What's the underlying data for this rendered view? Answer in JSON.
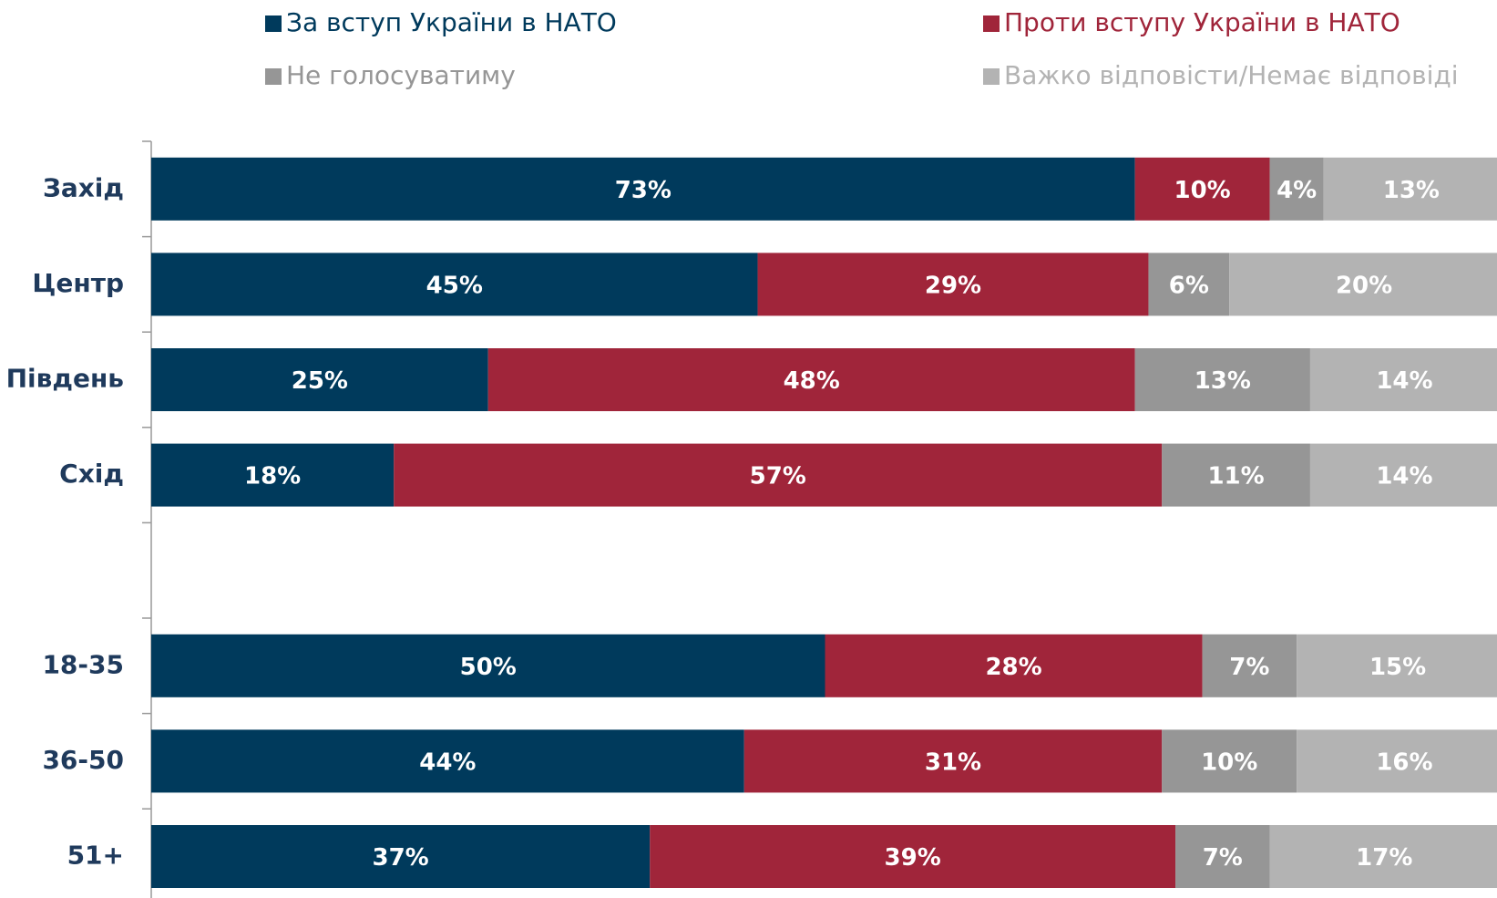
{
  "chart_data": {
    "type": "stacked-bar-horizontal",
    "categories": [
      "Захід",
      "Центр",
      "Південь",
      "Схід",
      null,
      "18-35",
      "36-50",
      "51+"
    ],
    "xlim": [
      0,
      100
    ],
    "series": [
      {
        "name": "За вступ України в НАТО",
        "color": "#003a5c",
        "values": [
          73,
          45,
          25,
          18,
          null,
          50,
          44,
          37
        ],
        "value_labels": [
          "73%",
          "45%",
          "25%",
          "18%",
          null,
          "50%",
          "44%",
          "37%"
        ]
      },
      {
        "name": "Проти вступу України в НАТО",
        "color": "#a0253a",
        "values": [
          10,
          29,
          48,
          57,
          null,
          28,
          31,
          39
        ],
        "value_labels": [
          "10%",
          "29%",
          "48%",
          "57%",
          null,
          "28%",
          "31%",
          "39%"
        ]
      },
      {
        "name": "Не голосуватиму",
        "color": "#969696",
        "values": [
          4,
          6,
          13,
          11,
          null,
          7,
          10,
          7
        ],
        "value_labels": [
          "4%",
          "6%",
          "13%",
          "11%",
          null,
          "7%",
          "10%",
          "7%"
        ]
      },
      {
        "name": "Важко відповісти/Немає відповіді",
        "color": "#b3b3b3",
        "values": [
          13,
          20,
          14,
          14,
          null,
          15,
          16,
          17
        ],
        "value_labels": [
          "13%",
          "20%",
          "14%",
          "14%",
          null,
          "15%",
          "16%",
          "17%"
        ]
      }
    ]
  }
}
